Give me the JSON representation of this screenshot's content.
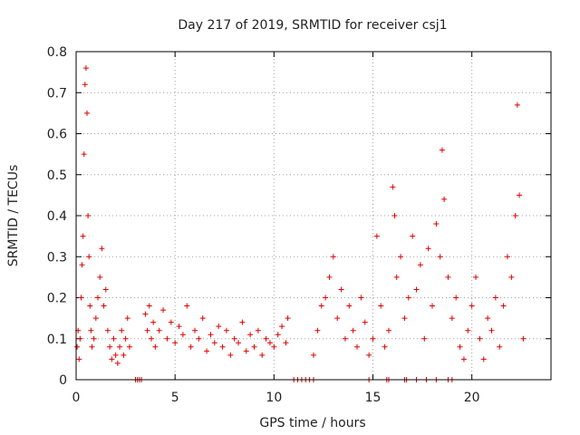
{
  "chart_data": {
    "type": "scatter",
    "title": "Day 217 of 2019, SRMTID for receiver csj1",
    "xlabel": "GPS time / hours",
    "ylabel": "SRMTID / TECUs",
    "xlim": [
      0,
      24
    ],
    "ylim": [
      0,
      0.8
    ],
    "x_ticks": [
      0,
      5,
      10,
      15,
      20
    ],
    "y_ticks": [
      0,
      0.1,
      0.2,
      0.3,
      0.4,
      0.5,
      0.6,
      0.7,
      0.8
    ],
    "x_tick_labels": [
      "0",
      "5",
      "10",
      "15",
      "20"
    ],
    "y_tick_labels": [
      "0",
      "0.1",
      "0.2",
      "0.3",
      "0.4",
      "0.5",
      "0.6",
      "0.7",
      "0.8"
    ],
    "grid": true,
    "marker": "+",
    "color": "#e00000",
    "series": [
      {
        "name": "csj1",
        "x": [
          0.05,
          0.1,
          0.15,
          0.2,
          0.25,
          0.3,
          0.35,
          0.4,
          0.45,
          0.5,
          0.55,
          0.6,
          0.65,
          0.7,
          0.75,
          0.8,
          0.9,
          1.0,
          1.1,
          1.2,
          1.3,
          1.4,
          1.5,
          1.6,
          1.7,
          1.8,
          1.9,
          2.0,
          2.1,
          2.2,
          2.3,
          2.4,
          2.5,
          2.6,
          2.7,
          3.5,
          3.6,
          3.7,
          3.8,
          3.9,
          4.0,
          4.2,
          4.4,
          4.6,
          4.8,
          5.0,
          5.2,
          5.4,
          5.6,
          5.8,
          6.0,
          6.2,
          6.4,
          6.6,
          6.8,
          7.0,
          7.2,
          7.4,
          7.6,
          7.8,
          8.0,
          8.2,
          8.4,
          8.6,
          8.8,
          9.0,
          9.2,
          9.4,
          9.6,
          9.8,
          10.0,
          10.2,
          10.4,
          10.6,
          10.7,
          12.0,
          12.2,
          12.4,
          12.6,
          12.8,
          13.0,
          13.2,
          13.4,
          13.6,
          13.8,
          14.0,
          14.2,
          14.4,
          14.6,
          14.8,
          15.0,
          15.2,
          15.4,
          15.6,
          15.8,
          16.0,
          16.1,
          16.2,
          16.4,
          16.6,
          16.8,
          17.0,
          17.2,
          17.4,
          17.6,
          17.8,
          18.0,
          18.2,
          18.4,
          18.5,
          18.6,
          18.8,
          19.0,
          19.2,
          19.4,
          19.6,
          19.8,
          20.0,
          20.2,
          20.4,
          20.6,
          20.8,
          21.0,
          21.2,
          21.4,
          21.6,
          21.8,
          22.0,
          22.2,
          22.3,
          22.4,
          22.6
        ],
        "y": [
          0.08,
          0.12,
          0.05,
          0.1,
          0.2,
          0.28,
          0.35,
          0.55,
          0.72,
          0.76,
          0.65,
          0.4,
          0.3,
          0.18,
          0.12,
          0.08,
          0.1,
          0.15,
          0.2,
          0.25,
          0.32,
          0.18,
          0.22,
          0.12,
          0.08,
          0.05,
          0.1,
          0.06,
          0.04,
          0.08,
          0.12,
          0.06,
          0.1,
          0.15,
          0.08,
          0.16,
          0.12,
          0.18,
          0.1,
          0.14,
          0.08,
          0.12,
          0.17,
          0.1,
          0.14,
          0.09,
          0.13,
          0.11,
          0.18,
          0.08,
          0.12,
          0.1,
          0.15,
          0.07,
          0.11,
          0.09,
          0.13,
          0.08,
          0.12,
          0.06,
          0.1,
          0.09,
          0.14,
          0.07,
          0.11,
          0.08,
          0.12,
          0.06,
          0.1,
          0.09,
          0.08,
          0.11,
          0.13,
          0.09,
          0.15,
          0.06,
          0.12,
          0.18,
          0.2,
          0.25,
          0.3,
          0.15,
          0.22,
          0.1,
          0.18,
          0.12,
          0.08,
          0.2,
          0.14,
          0.06,
          0.1,
          0.35,
          0.18,
          0.08,
          0.12,
          0.47,
          0.4,
          0.25,
          0.3,
          0.15,
          0.2,
          0.35,
          0.22,
          0.28,
          0.1,
          0.32,
          0.18,
          0.38,
          0.3,
          0.56,
          0.44,
          0.25,
          0.15,
          0.2,
          0.08,
          0.05,
          0.12,
          0.18,
          0.25,
          0.1,
          0.05,
          0.15,
          0.12,
          0.2,
          0.08,
          0.18,
          0.3,
          0.25,
          0.4,
          0.67,
          0.45,
          0.1
        ]
      }
    ],
    "zero_markers_x": [
      3.0,
      3.1,
      3.2,
      3.3,
      11.0,
      11.2,
      11.4,
      11.6,
      11.8,
      12.0,
      14.8,
      15.7,
      15.8,
      16.6,
      16.7,
      17.2,
      17.7,
      18.2,
      18.8,
      19.0
    ]
  }
}
